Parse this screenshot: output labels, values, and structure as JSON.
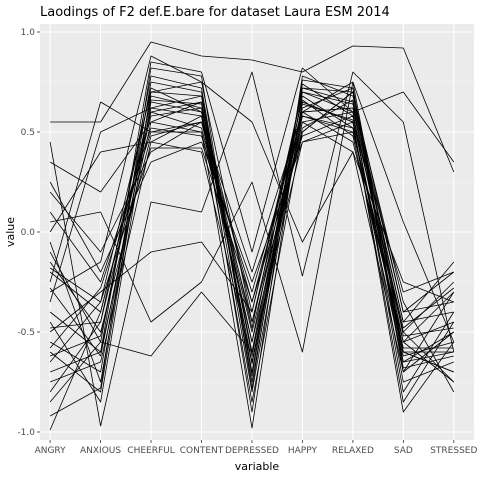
{
  "chart_data": {
    "type": "line",
    "title": "Laodings of F2 def.E.bare for dataset Laura ESM 2014",
    "xlabel": "variable",
    "ylabel": "value",
    "categories": [
      "ANGRY",
      "ANXIOUS",
      "CHEERFUL",
      "CONTENT",
      "DEPRESSED",
      "HAPPY",
      "RELAXED",
      "SAD",
      "STRESSED"
    ],
    "ylim": [
      -1.04,
      1.04
    ],
    "yticks": [
      -1.0,
      -0.5,
      0.0,
      0.5,
      1.0
    ],
    "ytick_labels": [
      "-1.0",
      "-0.5",
      "0.0",
      "0.5",
      "1.0"
    ],
    "grid": true,
    "legend": "none",
    "colors": {
      "panel_bg": "#ebebeb",
      "grid_major": "#ffffff",
      "grid_minor": "#f5f5f5",
      "line": "#000000",
      "tick_text": "#4d4d4d"
    },
    "series": [
      {
        "values": [
          0.55,
          0.55,
          0.95,
          0.88,
          0.86,
          0.8,
          0.93,
          0.92,
          0.3
        ]
      },
      {
        "values": [
          0.45,
          -0.97,
          0.15,
          0.1,
          0.8,
          -0.22,
          0.8,
          0.55,
          -0.6
        ]
      },
      {
        "values": [
          -0.25,
          0.65,
          0.5,
          0.55,
          -0.2,
          0.6,
          0.45,
          -0.55,
          -0.3
        ]
      },
      {
        "values": [
          -0.99,
          -0.4,
          0.6,
          0.65,
          -0.8,
          0.6,
          0.62,
          -0.6,
          -0.7
        ]
      },
      {
        "values": [
          -0.6,
          -0.8,
          0.7,
          0.75,
          -0.45,
          0.5,
          0.7,
          -0.4,
          -0.2
        ]
      },
      {
        "values": [
          0.35,
          0.2,
          0.55,
          0.5,
          -0.98,
          0.65,
          0.55,
          -0.85,
          -0.45
        ]
      },
      {
        "values": [
          -0.1,
          -0.55,
          -0.62,
          -0.3,
          -0.6,
          0.45,
          0.5,
          -0.5,
          -0.75
        ]
      },
      {
        "values": [
          0.05,
          0.1,
          -0.45,
          -0.25,
          0.25,
          -0.6,
          0.75,
          0.05,
          -0.55
        ]
      },
      {
        "values": [
          -0.5,
          -0.3,
          -0.1,
          -0.05,
          -0.4,
          0.7,
          0.6,
          0.7,
          0.35
        ]
      },
      {
        "values": [
          -0.7,
          -0.6,
          0.85,
          0.8,
          -0.1,
          0.82,
          0.6,
          -0.8,
          -0.4
        ]
      },
      {
        "values": [
          0.0,
          0.4,
          0.45,
          0.4,
          -0.65,
          0.55,
          0.4,
          -0.7,
          -0.3
        ]
      },
      {
        "values": [
          -0.35,
          0.5,
          0.62,
          0.58,
          -0.55,
          0.72,
          0.65,
          -0.45,
          -0.15
        ]
      },
      {
        "values": [
          0.2,
          -0.1,
          0.4,
          0.55,
          -0.35,
          0.6,
          0.75,
          -0.6,
          -0.6
        ]
      },
      {
        "values": [
          -0.55,
          -0.7,
          0.75,
          0.7,
          -0.75,
          0.65,
          0.55,
          -0.9,
          -0.55
        ]
      },
      {
        "values": [
          -0.8,
          -0.45,
          0.58,
          0.62,
          -0.9,
          0.78,
          0.68,
          -0.35,
          -0.8
        ]
      },
      {
        "values": [
          0.1,
          -0.25,
          0.52,
          0.48,
          -0.3,
          0.58,
          0.5,
          -0.55,
          -0.45
        ]
      },
      {
        "values": [
          -0.3,
          -0.15,
          0.88,
          0.75,
          0.55,
          -0.05,
          0.4,
          -0.25,
          -0.35
        ]
      },
      {
        "values": [
          -0.45,
          -0.85,
          0.65,
          0.6,
          -0.65,
          0.62,
          0.72,
          -0.65,
          -0.5
        ]
      },
      {
        "values": [
          -0.15,
          -0.5,
          0.48,
          0.55,
          -0.5,
          0.55,
          0.6,
          -0.75,
          -0.65
        ]
      },
      {
        "values": [
          -0.65,
          -0.35,
          0.7,
          0.68,
          -0.7,
          0.74,
          0.58,
          -0.5,
          -0.25
        ]
      },
      {
        "values": [
          -0.4,
          -0.6,
          0.55,
          0.65,
          -0.6,
          0.68,
          0.52,
          -0.6,
          -0.7
        ]
      },
      {
        "values": [
          -0.2,
          -0.4,
          0.6,
          0.52,
          -0.45,
          0.6,
          0.62,
          -0.45,
          -0.4
        ]
      },
      {
        "values": [
          -0.75,
          -0.65,
          0.45,
          0.58,
          -0.85,
          0.5,
          0.7,
          -0.7,
          -0.5
        ]
      },
      {
        "values": [
          0.25,
          -0.2,
          0.35,
          0.45,
          -0.25,
          0.45,
          0.55,
          -0.3,
          -0.2
        ]
      },
      {
        "values": [
          -0.05,
          -0.75,
          0.68,
          0.62,
          -0.4,
          0.66,
          0.48,
          -0.65,
          -0.6
        ]
      },
      {
        "values": [
          -0.85,
          -0.55,
          0.78,
          0.72,
          -0.72,
          0.7,
          0.64,
          -0.55,
          -0.75
        ]
      },
      {
        "values": [
          -0.58,
          -0.28,
          0.5,
          0.5,
          -0.55,
          0.52,
          0.66,
          -0.4,
          -0.35
        ]
      },
      {
        "values": [
          -0.28,
          -0.62,
          0.62,
          0.68,
          -0.62,
          0.64,
          0.56,
          -0.62,
          -0.55
        ]
      },
      {
        "values": [
          -0.48,
          -0.45,
          0.72,
          0.6,
          -0.48,
          0.72,
          0.7,
          -0.52,
          -0.48
        ]
      },
      {
        "values": [
          -0.92,
          -0.78,
          0.82,
          0.78,
          -0.78,
          0.76,
          0.72,
          -0.68,
          -0.62
        ]
      },
      {
        "values": [
          -0.18,
          -0.35,
          0.42,
          0.42,
          -0.35,
          0.48,
          0.58,
          -0.48,
          -0.28
        ]
      },
      {
        "values": [
          -0.62,
          -0.52,
          0.66,
          0.64,
          -0.66,
          0.58,
          0.52,
          -0.58,
          -0.58
        ]
      }
    ]
  }
}
